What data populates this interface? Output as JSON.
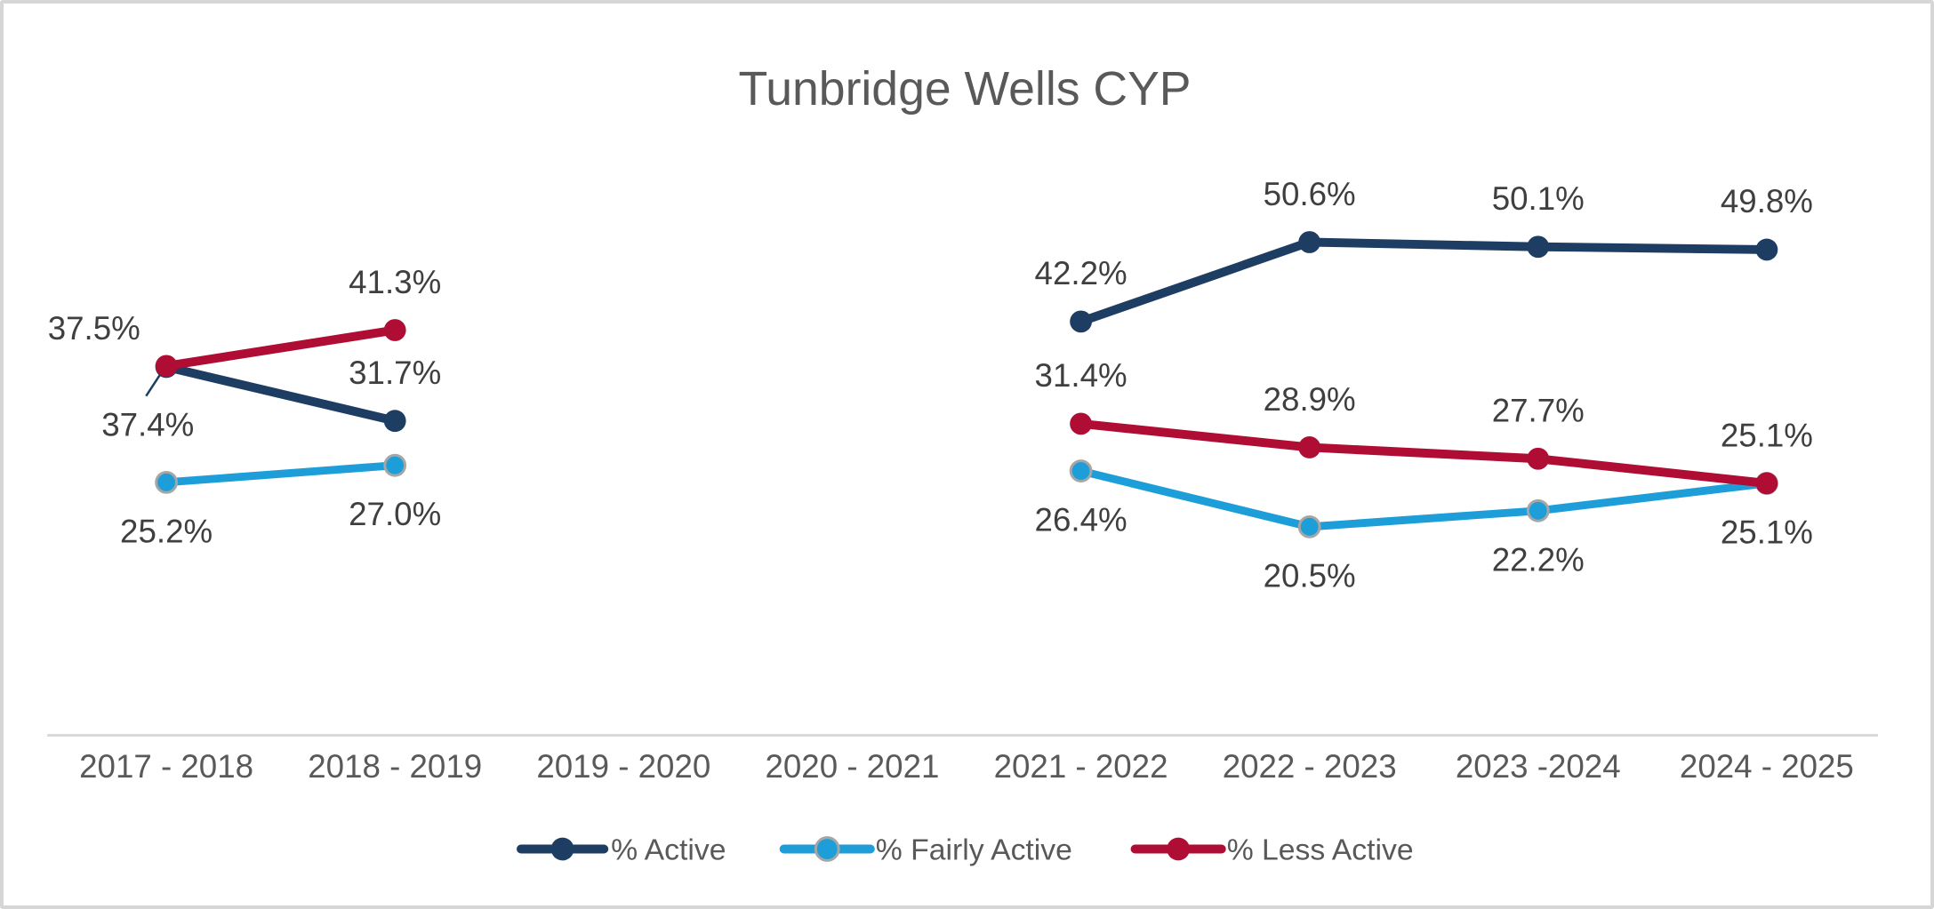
{
  "chart_data": {
    "type": "line",
    "title": "Tunbridge Wells CYP",
    "title_color": "#595959",
    "categories": [
      "2017 - 2018",
      "2018 - 2019",
      "2019 - 2020",
      "2020 - 2021",
      "2021 - 2022",
      "2022 - 2023",
      "2023 -2024",
      "2024 - 2025"
    ],
    "series": [
      {
        "name": "% Active",
        "color": "#1E3D62",
        "marker": "filled-circle",
        "values": [
          37.4,
          31.7,
          null,
          null,
          42.2,
          50.6,
          50.1,
          49.8
        ],
        "labels": [
          "37.4%",
          "31.7%",
          null,
          null,
          "42.2%",
          "50.6%",
          "50.1%",
          "49.8%"
        ],
        "label_pos": [
          "below-left-leader",
          "above",
          null,
          null,
          "above",
          "above",
          "above",
          "above"
        ]
      },
      {
        "name": "% Fairly Active",
        "color": "#1E9ED9",
        "marker": "circle-gray-ring",
        "marker_ring_color": "#A6A6A6",
        "values": [
          25.2,
          27.0,
          null,
          null,
          26.4,
          20.5,
          22.2,
          25.1
        ],
        "labels": [
          "25.2%",
          "27.0%",
          null,
          null,
          "26.4%",
          "20.5%",
          "22.2%",
          "25.1%"
        ],
        "label_pos": [
          "below",
          "below",
          null,
          null,
          "below",
          "below",
          "below",
          "below"
        ]
      },
      {
        "name": "% Less Active",
        "color": "#B00D35",
        "marker": "filled-circle",
        "values": [
          37.5,
          41.3,
          null,
          null,
          31.4,
          28.9,
          27.7,
          25.1
        ],
        "labels": [
          "37.5%",
          "41.3%",
          null,
          null,
          "31.4%",
          "28.9%",
          "27.7%",
          "25.1%"
        ],
        "label_pos": [
          "left-above",
          "above",
          null,
          null,
          "above",
          "above",
          "above",
          "above"
        ]
      }
    ],
    "data_label_color": "#3F3F3F",
    "x_axis": {
      "line_color": "#D9D9D9",
      "label_color": "#595959",
      "labels_visible": true
    },
    "y_axis": {
      "visible": false,
      "implied_range": [
        0,
        55
      ]
    },
    "gridlines": false,
    "legend_position": "bottom",
    "data_gap_note": "no data points for 2019 - 2020 and 2020 - 2021"
  }
}
